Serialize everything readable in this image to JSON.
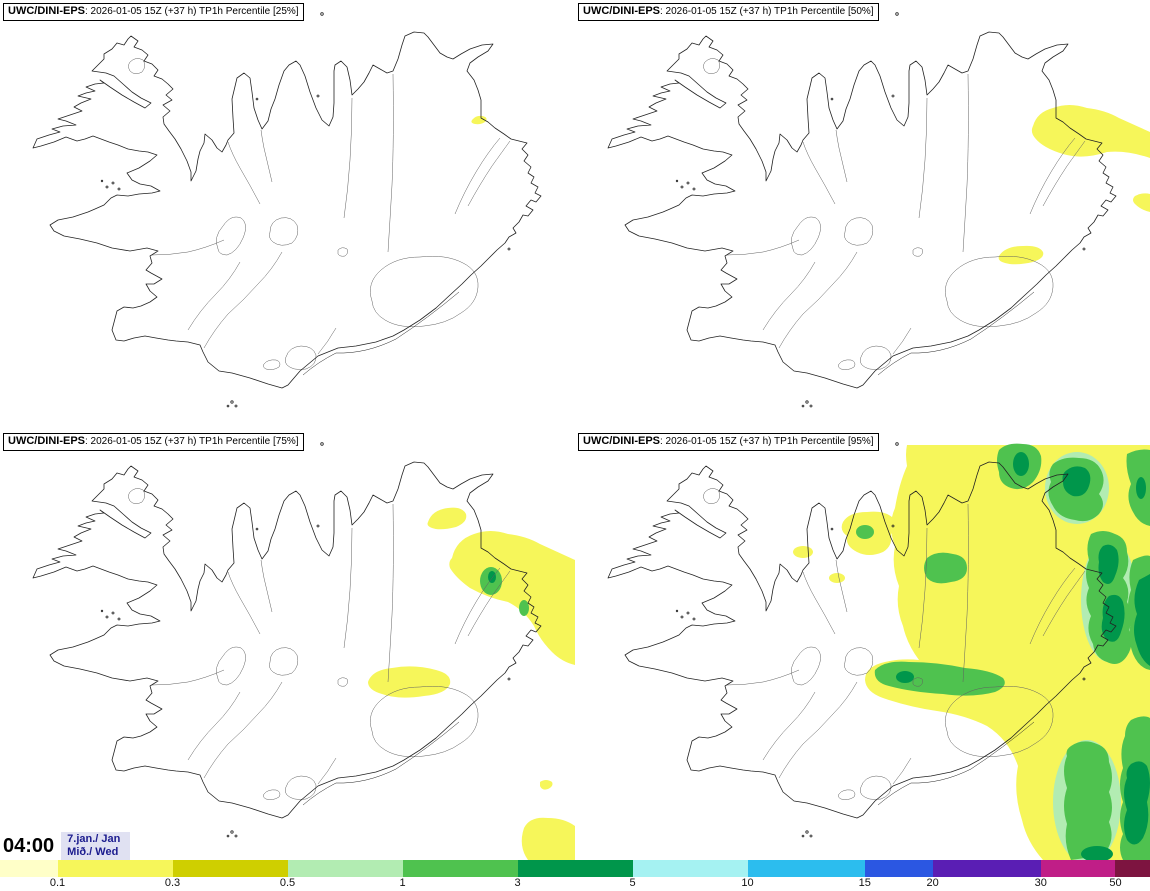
{
  "colors": {
    "yellow": "#F6F65A",
    "light_green": "#B2ECB2",
    "green": "#4FC24F",
    "dark_green": "#00964B",
    "coastline": "#222222",
    "interior_line": "#606060",
    "date_text": "#1B1B8E",
    "date_bg": "#E0E1F2",
    "title_border": "#000000"
  },
  "panels": [
    {
      "model": "UWC/DINI-EPS",
      "run": "2026-01-05 15Z",
      "lead": "+37 h",
      "parameter": "TP1h Percentile",
      "percentile": "25%",
      "subtitle": ": 2026-01-05 15Z (+37 h) TP1h Percentile [25%]"
    },
    {
      "model": "UWC/DINI-EPS",
      "run": "2026-01-05 15Z",
      "lead": "+37 h",
      "parameter": "TP1h Percentile",
      "percentile": "50%",
      "subtitle": ": 2026-01-05 15Z (+37 h) TP1h Percentile [50%]"
    },
    {
      "model": "UWC/DINI-EPS",
      "run": "2026-01-05 15Z",
      "lead": "+37 h",
      "parameter": "TP1h Percentile",
      "percentile": "75%",
      "subtitle": ": 2026-01-05 15Z (+37 h) TP1h Percentile [75%]"
    },
    {
      "model": "UWC/DINI-EPS",
      "run": "2026-01-05 15Z",
      "lead": "+37 h",
      "parameter": "TP1h Percentile",
      "percentile": "95%",
      "subtitle": ": 2026-01-05 15Z (+37 h) TP1h Percentile [95%]"
    }
  ],
  "footer": {
    "time": "04:00",
    "date_line1": "7.jan./ Jan",
    "date_line2": "Mið./ Wed"
  },
  "colorbar": {
    "ticks": [
      "0.1",
      "0.3",
      "0.5",
      "1",
      "3",
      "5",
      "10",
      "15",
      "20",
      "30",
      "50"
    ],
    "segments": [
      {
        "color": "#FFFFC8",
        "to": "0.1",
        "w": 5
      },
      {
        "color": "#F6F65A",
        "to": "0.3",
        "w": 10
      },
      {
        "color": "#CFCF00",
        "to": "0.5",
        "w": 10
      },
      {
        "color": "#B2ECB2",
        "to": "1",
        "w": 10
      },
      {
        "color": "#4FC24F",
        "to": "3",
        "w": 10
      },
      {
        "color": "#00964B",
        "to": "5",
        "w": 10
      },
      {
        "color": "#A5F2F2",
        "to": "10",
        "w": 10
      },
      {
        "color": "#2CBDEE",
        "to": "15",
        "w": 10.2
      },
      {
        "color": "#2B57E2",
        "to": "20",
        "w": 5.9
      },
      {
        "color": "#5A1EB4",
        "to": "30",
        "w": 9.4
      },
      {
        "color": "#C01E87",
        "to": "50",
        "w": 6.5
      },
      {
        "color": "#7D1440",
        "to": null,
        "w": 3
      }
    ]
  }
}
